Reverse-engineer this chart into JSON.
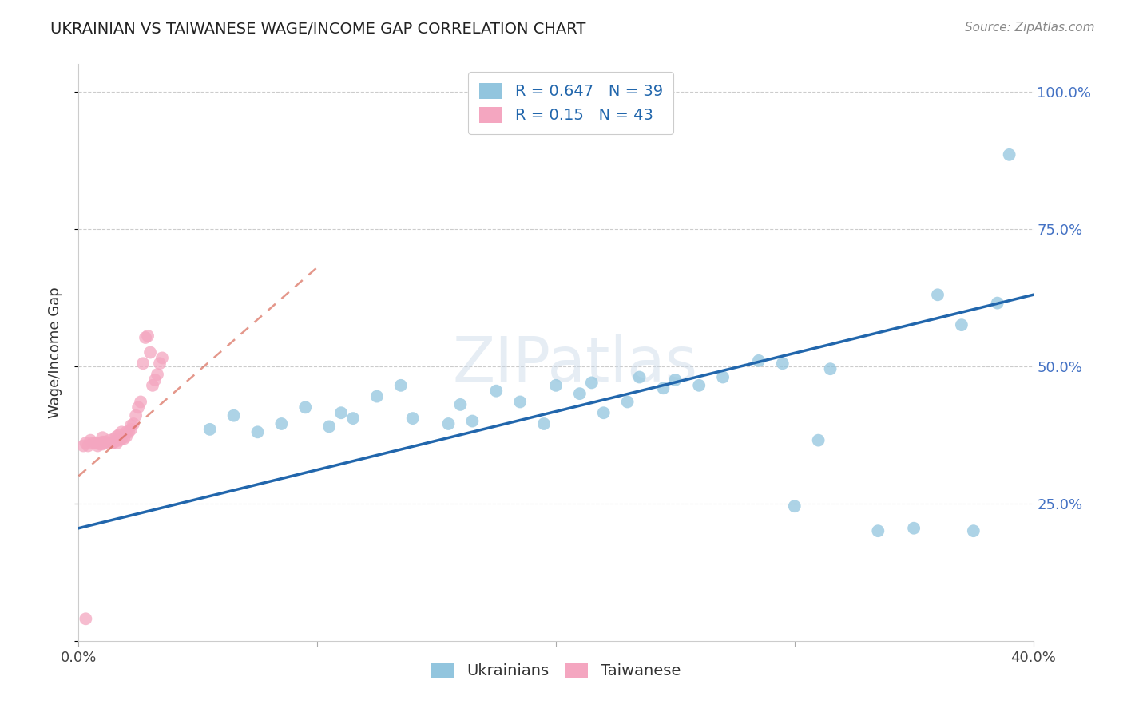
{
  "title": "UKRAINIAN VS TAIWANESE WAGE/INCOME GAP CORRELATION CHART",
  "source": "Source: ZipAtlas.com",
  "ylabel_label": "Wage/Income Gap",
  "xlim": [
    0.0,
    0.4
  ],
  "ylim": [
    0.0,
    1.05
  ],
  "ukraine_R": 0.647,
  "ukraine_N": 39,
  "taiwan_R": 0.15,
  "taiwan_N": 43,
  "blue_color": "#92c5de",
  "pink_color": "#f4a6c0",
  "blue_line_color": "#2166ac",
  "pink_line_color": "#d6604d",
  "background_color": "#ffffff",
  "watermark": "ZIPatlas",
  "ukraine_x": [
    0.055,
    0.065,
    0.075,
    0.085,
    0.095,
    0.105,
    0.11,
    0.115,
    0.125,
    0.135,
    0.14,
    0.155,
    0.16,
    0.165,
    0.175,
    0.185,
    0.195,
    0.2,
    0.21,
    0.215,
    0.22,
    0.23,
    0.235,
    0.245,
    0.25,
    0.26,
    0.27,
    0.285,
    0.295,
    0.3,
    0.31,
    0.315,
    0.335,
    0.35,
    0.36,
    0.37,
    0.375,
    0.385,
    0.39
  ],
  "ukraine_y": [
    0.385,
    0.41,
    0.38,
    0.395,
    0.425,
    0.39,
    0.415,
    0.405,
    0.445,
    0.465,
    0.405,
    0.395,
    0.43,
    0.4,
    0.455,
    0.435,
    0.395,
    0.465,
    0.45,
    0.47,
    0.415,
    0.435,
    0.48,
    0.46,
    0.475,
    0.465,
    0.48,
    0.51,
    0.505,
    0.245,
    0.365,
    0.495,
    0.2,
    0.205,
    0.63,
    0.575,
    0.2,
    0.615,
    0.885
  ],
  "taiwan_x": [
    0.002,
    0.003,
    0.004,
    0.005,
    0.006,
    0.007,
    0.008,
    0.009,
    0.01,
    0.01,
    0.01,
    0.011,
    0.012,
    0.013,
    0.014,
    0.015,
    0.015,
    0.016,
    0.016,
    0.017,
    0.017,
    0.018,
    0.018,
    0.019,
    0.02,
    0.02,
    0.021,
    0.022,
    0.022,
    0.023,
    0.024,
    0.025,
    0.026,
    0.027,
    0.028,
    0.029,
    0.03,
    0.031,
    0.032,
    0.033,
    0.034,
    0.035,
    0.003
  ],
  "taiwan_y": [
    0.355,
    0.36,
    0.355,
    0.365,
    0.36,
    0.36,
    0.355,
    0.358,
    0.358,
    0.362,
    0.37,
    0.362,
    0.36,
    0.365,
    0.36,
    0.362,
    0.368,
    0.36,
    0.372,
    0.365,
    0.375,
    0.368,
    0.38,
    0.368,
    0.372,
    0.38,
    0.38,
    0.385,
    0.392,
    0.395,
    0.41,
    0.425,
    0.435,
    0.505,
    0.552,
    0.555,
    0.525,
    0.465,
    0.475,
    0.485,
    0.505,
    0.515,
    0.04
  ],
  "blue_line_x": [
    0.0,
    0.4
  ],
  "blue_line_y": [
    0.205,
    0.63
  ],
  "pink_line_x": [
    0.0,
    0.1
  ],
  "pink_line_y": [
    0.3,
    0.68
  ]
}
